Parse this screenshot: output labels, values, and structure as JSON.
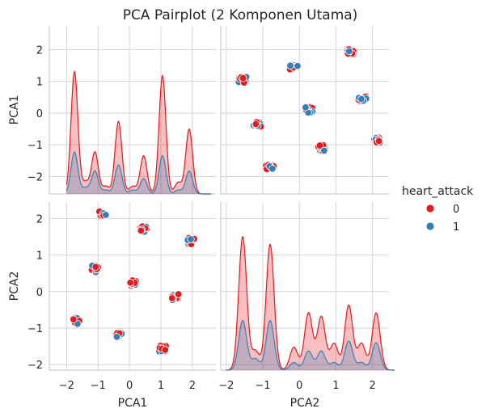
{
  "chart_data": {
    "type": "scatter",
    "title": "PCA Pairplot (2 Komponen Utama)",
    "variables": [
      "PCA1",
      "PCA2"
    ],
    "axes": {
      "PCA1": {
        "lim": [
          -2.55,
          2.75
        ],
        "ticks": [
          -2,
          -1,
          0,
          1,
          2
        ]
      },
      "PCA2": {
        "lim": [
          -2.15,
          2.45
        ],
        "ticks": [
          -2,
          -1,
          0,
          1,
          2
        ]
      }
    },
    "diag_ylim": [
      0,
      2.2
    ],
    "grid": true,
    "legend": {
      "title": "heart_attack",
      "placement": "right",
      "entries": [
        "0",
        "1"
      ]
    },
    "series": [
      {
        "name": "0",
        "color": "#e41a1c"
      },
      {
        "name": "1",
        "color": "#377eb8"
      }
    ],
    "clusters": [
      {
        "pca1": -1.7,
        "pca2": -0.8,
        "n0": 12,
        "n1": 5
      },
      {
        "pca1": -1.1,
        "pca2": 0.62,
        "n0": 10,
        "n1": 6
      },
      {
        "pca1": -0.85,
        "pca2": 2.12,
        "n0": 8,
        "n1": 5
      },
      {
        "pca1": -0.35,
        "pca2": -1.15,
        "n0": 7,
        "n1": 5
      },
      {
        "pca1": 0.1,
        "pca2": 0.25,
        "n0": 8,
        "n1": 5
      },
      {
        "pca1": 0.45,
        "pca2": 1.72,
        "n0": 8,
        "n1": 5
      },
      {
        "pca1": 1.05,
        "pca2": -1.55,
        "n0": 11,
        "n1": 6
      },
      {
        "pca1": 1.45,
        "pca2": -0.15,
        "n0": 9,
        "n1": 5
      },
      {
        "pca1": 1.95,
        "pca2": 1.38,
        "n0": 9,
        "n1": 5
      }
    ],
    "kde": {
      "PCA1": {
        "x": [
          -1.75,
          -1.1,
          -0.35,
          0.45,
          1.05,
          1.9,
          -1.4,
          -0.75,
          0.1,
          1.55
        ],
        "w0": [
          1.6,
          0.55,
          0.95,
          0.5,
          1.55,
          0.85,
          0.15,
          0.1,
          0.1,
          0.15
        ],
        "w1": [
          0.55,
          0.3,
          0.38,
          0.2,
          0.5,
          0.3,
          0.08,
          0.05,
          0.05,
          0.05
        ],
        "bw": 0.11
      },
      "PCA2": {
        "x": [
          -1.55,
          -0.8,
          -1.2,
          0.25,
          -0.15,
          0.6,
          1.35,
          2.1,
          0.95,
          1.7
        ],
        "w0": [
          1.75,
          1.65,
          0.25,
          0.75,
          0.3,
          0.7,
          0.85,
          0.75,
          0.35,
          0.35
        ],
        "w1": [
          0.65,
          0.65,
          0.15,
          0.25,
          0.1,
          0.25,
          0.38,
          0.36,
          0.1,
          0.1
        ],
        "bw": 0.11
      }
    }
  }
}
